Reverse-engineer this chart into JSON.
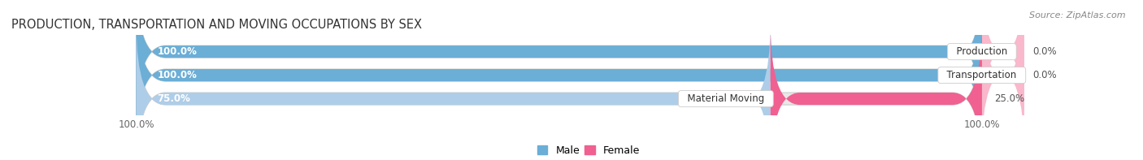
{
  "title": "PRODUCTION, TRANSPORTATION AND MOVING OCCUPATIONS BY SEX",
  "source": "Source: ZipAtlas.com",
  "categories": [
    "Production",
    "Transportation",
    "Material Moving"
  ],
  "male_pct": [
    100.0,
    100.0,
    75.0
  ],
  "female_pct": [
    0.0,
    0.0,
    25.0
  ],
  "male_color_dark": "#6BAED6",
  "male_color_light": "#AECDE8",
  "female_color_dark": "#F06090",
  "female_color_light": "#F9B8CC",
  "bar_bg_color": "#E8E8E8",
  "bar_height": 0.52,
  "bar_gap": 0.18,
  "title_fontsize": 10.5,
  "source_fontsize": 8,
  "tick_fontsize": 8.5,
  "annotation_fontsize": 8.5,
  "cat_fontsize": 8.5
}
